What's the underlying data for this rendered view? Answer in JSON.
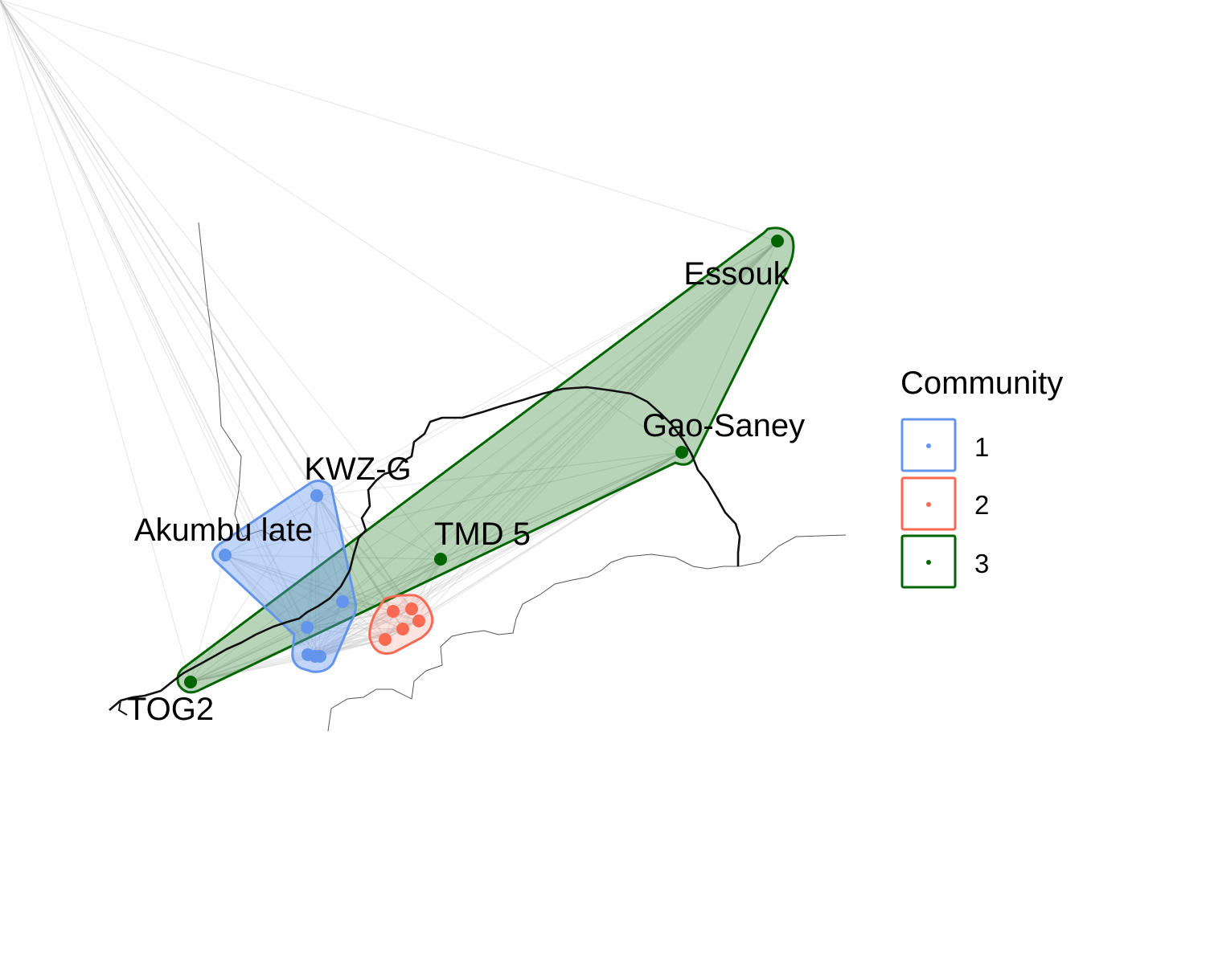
{
  "map": {
    "legend": {
      "title": "Community",
      "entries": [
        {
          "label": "1",
          "color": "#6495ED"
        },
        {
          "label": "2",
          "color": "#FA6A53"
        },
        {
          "label": "3",
          "color": "#006400"
        }
      ]
    },
    "sites": [
      {
        "name": "Essouk",
        "community": "3",
        "labeled": true
      },
      {
        "name": "Gao-Saney",
        "community": "3",
        "labeled": true
      },
      {
        "name": "TMD 5",
        "community": "3",
        "labeled": true
      },
      {
        "name": "TOG2",
        "community": "3",
        "labeled": true
      },
      {
        "name": "KWZ-G",
        "community": "1",
        "labeled": true
      },
      {
        "name": "Akumbu late",
        "community": "1",
        "labeled": true
      },
      {
        "name": "",
        "community": "1",
        "labeled": false
      },
      {
        "name": "",
        "community": "1",
        "labeled": false
      },
      {
        "name": "",
        "community": "1",
        "labeled": false
      },
      {
        "name": "",
        "community": "1",
        "labeled": false
      },
      {
        "name": "",
        "community": "1",
        "labeled": false
      },
      {
        "name": "",
        "community": "2",
        "labeled": false
      },
      {
        "name": "",
        "community": "2",
        "labeled": false
      },
      {
        "name": "",
        "community": "2",
        "labeled": false
      },
      {
        "name": "",
        "community": "2",
        "labeled": false
      },
      {
        "name": "",
        "community": "2",
        "labeled": false
      }
    ],
    "colors": {
      "edges": "#bdbdbd",
      "river": "#111111",
      "borders": "#555555"
    }
  }
}
